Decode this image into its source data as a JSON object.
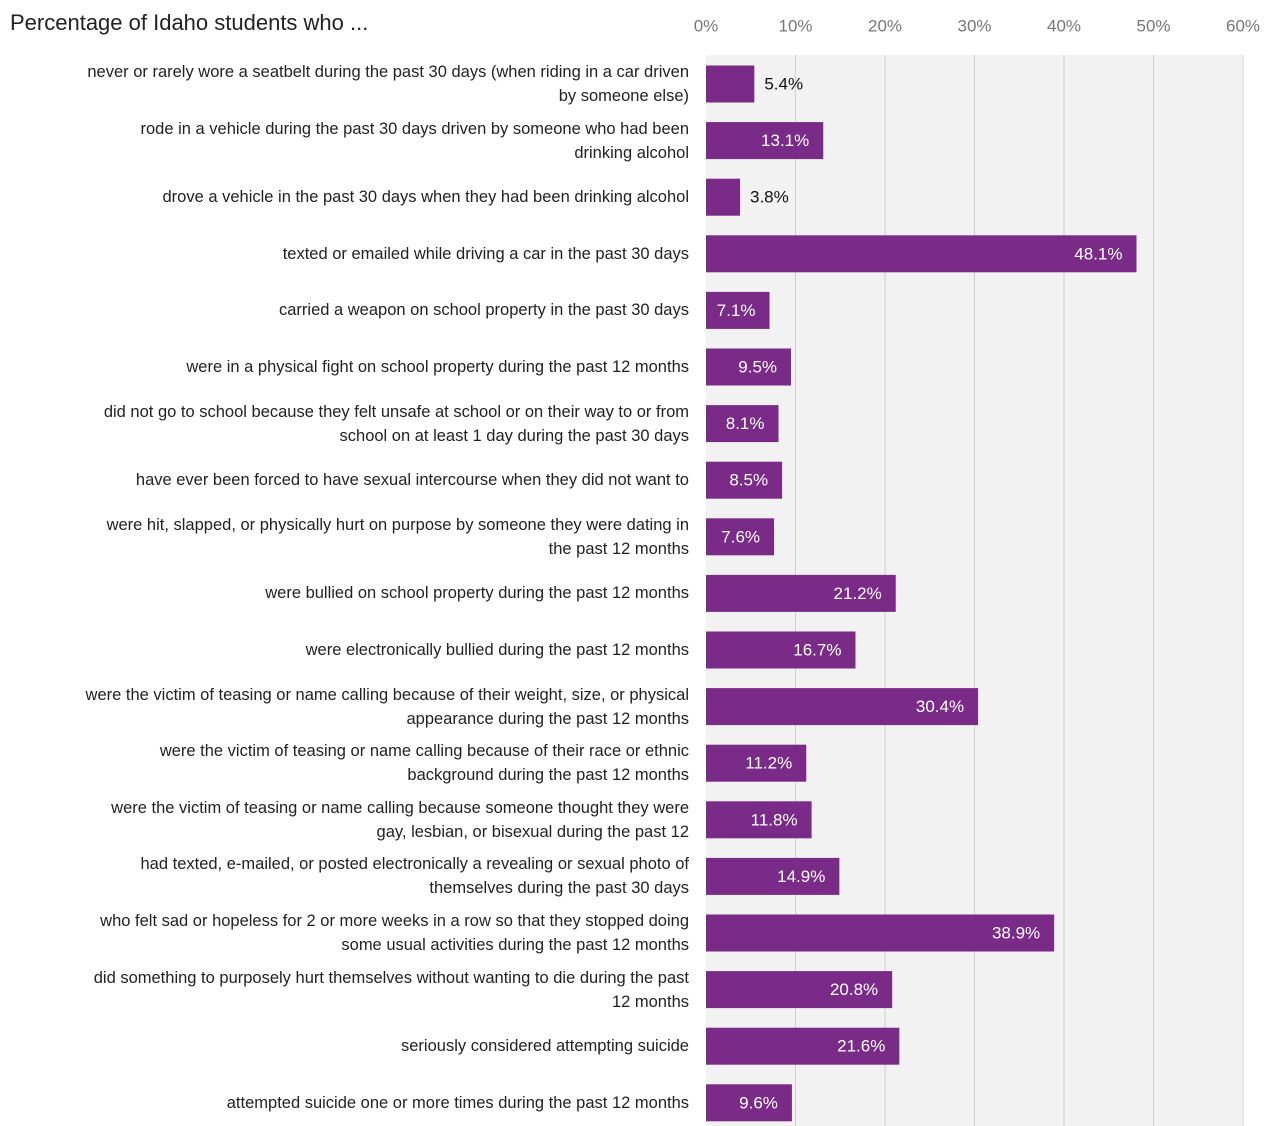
{
  "chart_data": {
    "type": "bar",
    "orientation": "horizontal",
    "title": "Percentage of Idaho students who ...",
    "categories": [
      "never or rarely wore a seatbelt during the past 30 days (when riding in a car driven by someone else)",
      "rode in a vehicle during the past 30 days driven by someone who had been drinking alcohol",
      "drove a vehicle in the past 30 days when they had been drinking alcohol",
      "texted or emailed while driving a car in the past 30 days",
      "carried a weapon on school property in the past 30 days",
      "were in a physical fight on school property during the past 12 months",
      "did not go to school because they felt unsafe at school or on their way to or from school on at least 1 day during the past 30 days",
      "have ever been forced to have sexual intercourse when they did not want to",
      "were hit, slapped, or physically hurt on purpose by someone they were dating in the past 12 months",
      "were bullied on school property during the past 12 months",
      "were electronically bullied during the past 12 months",
      "were the victim of teasing or name calling because of their weight, size, or physical appearance during the past 12 months",
      "were the victim of teasing or name calling because of their race or ethnic background during the past 12 months",
      "were the victim of teasing or name calling because someone thought they were gay, lesbian, or bisexual during the past 12",
      "had texted, e-mailed, or posted electronically a revealing or sexual photo of themselves during the past 30 days",
      "who felt sad or hopeless for 2 or more weeks in a row so that they stopped doing some usual activities during the past 12 months",
      "did something to purposely hurt themselves without wanting to die during the past 12 months",
      "seriously considered attempting suicide",
      "attempted suicide one or more times during the past 12 months"
    ],
    "values": [
      5.4,
      13.1,
      3.8,
      48.1,
      7.1,
      9.5,
      8.1,
      8.5,
      7.6,
      21.2,
      16.7,
      30.4,
      11.2,
      11.8,
      14.9,
      38.9,
      20.8,
      21.6,
      9.6
    ],
    "value_labels": [
      "5.4%",
      "13.1%",
      "3.8%",
      "48.1%",
      "7.1%",
      "9.5%",
      "8.1%",
      "8.5%",
      "7.6%",
      "21.2%",
      "16.7%",
      "30.4%",
      "11.2%",
      "11.8%",
      "14.9%",
      "38.9%",
      "20.8%",
      "21.6%",
      "9.6%"
    ],
    "color": "#7a2a87",
    "xlim": [
      0,
      60
    ],
    "xticks": [
      {
        "value": 0,
        "label": "0%"
      },
      {
        "value": 10,
        "label": "10%"
      },
      {
        "value": 20,
        "label": "20%"
      },
      {
        "value": 30,
        "label": "30%"
      },
      {
        "value": 40,
        "label": "40%"
      },
      {
        "value": 50,
        "label": "50%"
      },
      {
        "value": 60,
        "label": "60%"
      }
    ],
    "grid": true
  }
}
